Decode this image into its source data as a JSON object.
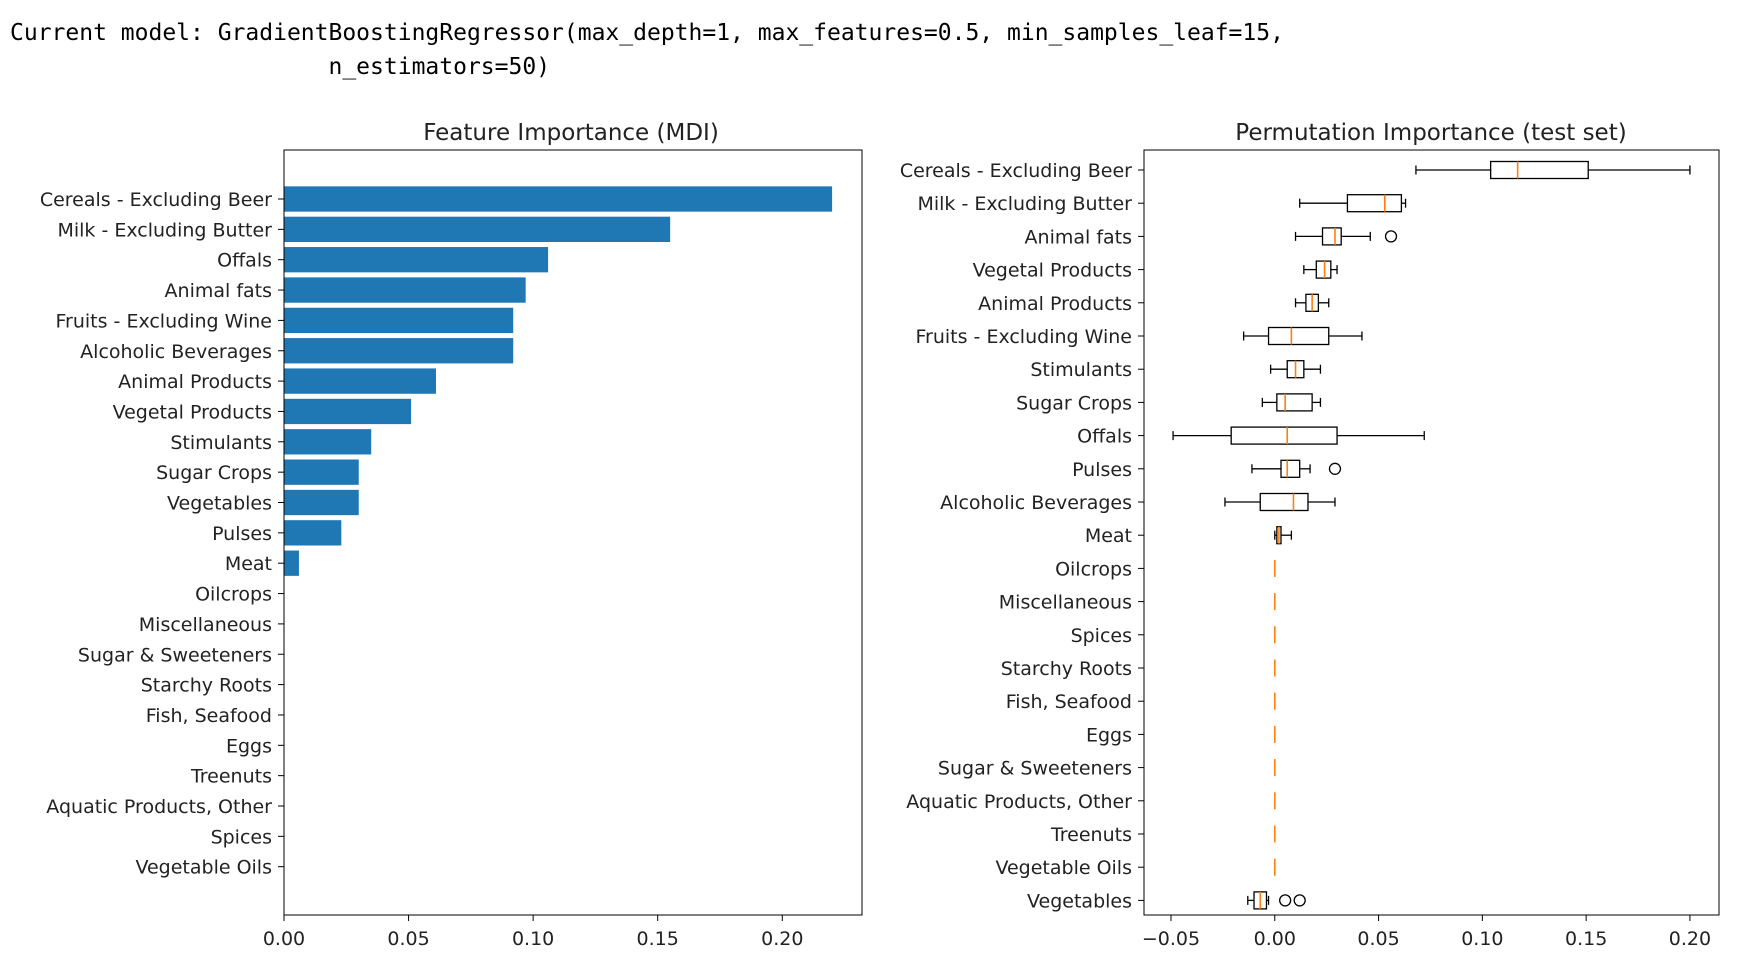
{
  "header": {
    "model_text": "Current model: GradientBoostingRegressor(max_depth=1, max_features=0.5, min_samples_leaf=15,\n                       n_estimators=50)"
  },
  "colors": {
    "bar": "#1f77b4",
    "median": "#ff7f0e",
    "box": "#000000"
  },
  "chart_data": [
    {
      "type": "bar",
      "orientation": "horizontal",
      "title": "Feature Importance (MDI)",
      "xlabel": "",
      "ylabel": "",
      "xlim": [
        0,
        0.232
      ],
      "xticks": [
        0.0,
        0.05,
        0.1,
        0.15,
        0.2
      ],
      "xtick_labels": [
        "0.00",
        "0.05",
        "0.10",
        "0.15",
        "0.20"
      ],
      "grid": false,
      "categories": [
        "Cereals - Excluding Beer",
        "Milk - Excluding Butter",
        "Offals",
        "Animal fats",
        "Fruits - Excluding Wine",
        "Alcoholic Beverages",
        "Animal Products",
        "Vegetal Products",
        "Stimulants",
        "Sugar Crops",
        "Vegetables",
        "Pulses",
        "Meat",
        "Oilcrops",
        "Miscellaneous",
        "Sugar & Sweeteners",
        "Starchy Roots",
        "Fish, Seafood",
        "Eggs",
        "Treenuts",
        "Aquatic Products, Other",
        "Spices",
        "Vegetable Oils"
      ],
      "values": [
        0.22,
        0.155,
        0.106,
        0.097,
        0.092,
        0.092,
        0.061,
        0.051,
        0.035,
        0.03,
        0.03,
        0.023,
        0.006,
        0,
        0,
        0,
        0,
        0,
        0,
        0,
        0,
        0,
        0
      ]
    },
    {
      "type": "box",
      "orientation": "horizontal",
      "title": "Permutation Importance (test set)",
      "xlabel": "",
      "ylabel": "",
      "xlim": [
        -0.063,
        0.214
      ],
      "xticks": [
        -0.05,
        0.0,
        0.05,
        0.1,
        0.15,
        0.2
      ],
      "xtick_labels": [
        "−0.05",
        "0.00",
        "0.05",
        "0.10",
        "0.15",
        "0.20"
      ],
      "grid": false,
      "categories": [
        "Cereals - Excluding Beer",
        "Milk - Excluding Butter",
        "Animal fats",
        "Vegetal Products",
        "Animal Products",
        "Fruits - Excluding Wine",
        "Stimulants",
        "Sugar Crops",
        "Offals",
        "Pulses",
        "Alcoholic Beverages",
        "Meat",
        "Oilcrops",
        "Miscellaneous",
        "Spices",
        "Starchy Roots",
        "Fish, Seafood",
        "Eggs",
        "Sugar & Sweeteners",
        "Aquatic Products, Other",
        "Treenuts",
        "Vegetable Oils",
        "Vegetables"
      ],
      "boxes": [
        {
          "whislo": 0.068,
          "q1": 0.104,
          "median": 0.117,
          "q3": 0.151,
          "whishi": 0.2,
          "fliers": []
        },
        {
          "whislo": 0.012,
          "q1": 0.035,
          "median": 0.053,
          "q3": 0.061,
          "whishi": 0.063,
          "fliers": []
        },
        {
          "whislo": 0.01,
          "q1": 0.023,
          "median": 0.029,
          "q3": 0.032,
          "whishi": 0.046,
          "fliers": [
            0.056
          ]
        },
        {
          "whislo": 0.014,
          "q1": 0.02,
          "median": 0.024,
          "q3": 0.027,
          "whishi": 0.03,
          "fliers": []
        },
        {
          "whislo": 0.01,
          "q1": 0.015,
          "median": 0.018,
          "q3": 0.021,
          "whishi": 0.026,
          "fliers": []
        },
        {
          "whislo": -0.015,
          "q1": -0.003,
          "median": 0.008,
          "q3": 0.026,
          "whishi": 0.042,
          "fliers": []
        },
        {
          "whislo": -0.002,
          "q1": 0.006,
          "median": 0.01,
          "q3": 0.014,
          "whishi": 0.022,
          "fliers": []
        },
        {
          "whislo": -0.006,
          "q1": 0.001,
          "median": 0.005,
          "q3": 0.018,
          "whishi": 0.022,
          "fliers": []
        },
        {
          "whislo": -0.049,
          "q1": -0.021,
          "median": 0.006,
          "q3": 0.03,
          "whishi": 0.072,
          "fliers": []
        },
        {
          "whislo": -0.011,
          "q1": 0.003,
          "median": 0.006,
          "q3": 0.012,
          "whishi": 0.017,
          "fliers": [
            0.029
          ]
        },
        {
          "whislo": -0.024,
          "q1": -0.007,
          "median": 0.009,
          "q3": 0.016,
          "whishi": 0.029,
          "fliers": []
        },
        {
          "whislo": 0.0,
          "q1": 0.001,
          "median": 0.002,
          "q3": 0.003,
          "whishi": 0.008,
          "fliers": []
        },
        {
          "whislo": 0,
          "q1": 0,
          "median": 0,
          "q3": 0,
          "whishi": 0,
          "fliers": []
        },
        {
          "whislo": 0,
          "q1": 0,
          "median": 0,
          "q3": 0,
          "whishi": 0,
          "fliers": []
        },
        {
          "whislo": 0,
          "q1": 0,
          "median": 0,
          "q3": 0,
          "whishi": 0,
          "fliers": []
        },
        {
          "whislo": 0,
          "q1": 0,
          "median": 0,
          "q3": 0,
          "whishi": 0,
          "fliers": []
        },
        {
          "whislo": 0,
          "q1": 0,
          "median": 0,
          "q3": 0,
          "whishi": 0,
          "fliers": []
        },
        {
          "whislo": 0,
          "q1": 0,
          "median": 0,
          "q3": 0,
          "whishi": 0,
          "fliers": []
        },
        {
          "whislo": 0,
          "q1": 0,
          "median": 0,
          "q3": 0,
          "whishi": 0,
          "fliers": []
        },
        {
          "whislo": 0,
          "q1": 0,
          "median": 0,
          "q3": 0,
          "whishi": 0,
          "fliers": []
        },
        {
          "whislo": 0,
          "q1": 0,
          "median": 0,
          "q3": 0,
          "whishi": 0,
          "fliers": []
        },
        {
          "whislo": 0,
          "q1": 0,
          "median": 0,
          "q3": 0,
          "whishi": 0,
          "fliers": []
        },
        {
          "whislo": -0.013,
          "q1": -0.01,
          "median": -0.007,
          "q3": -0.004,
          "whishi": -0.003,
          "fliers": [
            0.005,
            0.012
          ]
        }
      ]
    }
  ]
}
